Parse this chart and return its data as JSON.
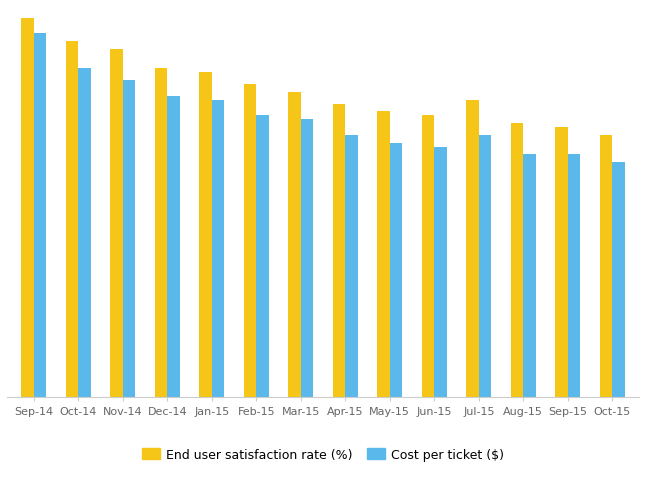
{
  "categories": [
    "Sep-14",
    "Oct-14",
    "Nov-14",
    "Dec-14",
    "Jan-15",
    "Feb-15",
    "Mar-15",
    "Apr-15",
    "May-15",
    "Jun-15",
    "Jul-15",
    "Aug-15",
    "Sep-15",
    "Oct-15"
  ],
  "satisfaction": [
    97,
    91,
    89,
    84,
    83,
    80,
    78,
    75,
    73,
    72,
    76,
    70,
    69,
    67
  ],
  "cost_per_ticket": [
    93,
    84,
    81,
    77,
    76,
    72,
    71,
    67,
    65,
    64,
    67,
    62,
    62,
    60
  ],
  "satisfaction_color": "#F5C518",
  "cost_color": "#5BB8EA",
  "background_color": "#ffffff",
  "ylim": [
    0,
    100
  ],
  "legend_satisfaction": "End user satisfaction rate (%)",
  "legend_cost": "Cost per ticket ($)",
  "bar_width": 0.28,
  "figsize": [
    6.46,
    4.85
  ],
  "dpi": 100
}
